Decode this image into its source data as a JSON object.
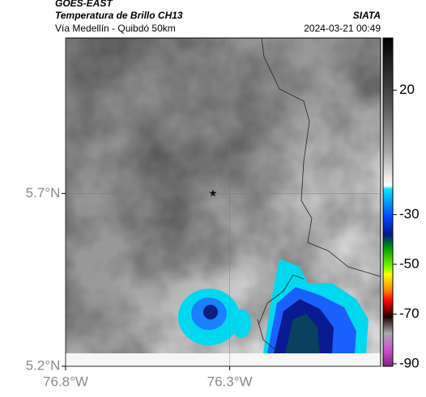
{
  "header": {
    "product": "GOES-EAST",
    "title": "Temperatura de Brillo CH13",
    "brand": "SIATA",
    "route": "Vía Medellín - Quibdó 50km",
    "timestamp": "2024-03-21 00:49"
  },
  "map": {
    "xlim": [
      -76.8,
      -75.84
    ],
    "ylim": [
      5.2,
      6.15
    ],
    "xticks": [
      {
        "value": -76.8,
        "label": "76.8°W"
      },
      {
        "value": -76.3,
        "label": "76.3°W"
      }
    ],
    "yticks": [
      {
        "value": 5.7,
        "label": "5.7°N"
      },
      {
        "value": 5.2,
        "label": "5.2°N"
      }
    ],
    "colorbar": {
      "lim": [
        -91,
        41
      ],
      "ticks": [
        20,
        -30,
        -50,
        -70,
        -90
      ]
    }
  }
}
